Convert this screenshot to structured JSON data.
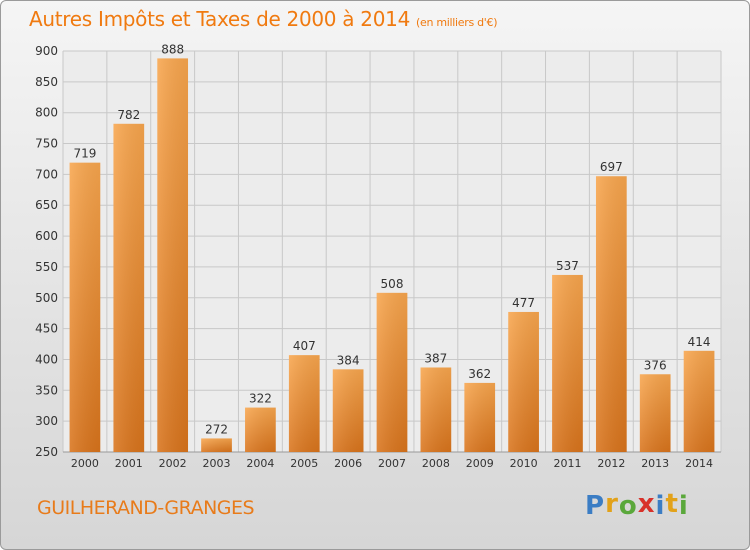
{
  "title": "Autres Impôts et Taxes de 2000 à 2014",
  "unit": "(en milliers d'€)",
  "location": "GUILHERAND-GRANGES",
  "logo": {
    "text": "Proxiti",
    "letters": [
      "P",
      "r",
      "o",
      "x",
      "i",
      "t",
      "i"
    ],
    "colors": [
      "#3b7dc4",
      "#e2a21a",
      "#5aa83b",
      "#d8312a",
      "#3b7dc4",
      "#e2a21a",
      "#5aa83b"
    ]
  },
  "colors": {
    "accent": "#f07a10",
    "bar_light": "#f8a64e",
    "bar_dark": "#d9741c",
    "grid": "#c8c8c8",
    "text": "#333333"
  },
  "chart_data": {
    "type": "bar",
    "categories": [
      "2000",
      "2001",
      "2002",
      "2003",
      "2004",
      "2005",
      "2006",
      "2007",
      "2008",
      "2009",
      "2010",
      "2011",
      "2012",
      "2013",
      "2014"
    ],
    "values": [
      719,
      782,
      888,
      272,
      322,
      407,
      384,
      508,
      387,
      362,
      477,
      537,
      697,
      376,
      414
    ],
    "ylim": [
      250,
      900
    ],
    "yticks": [
      250,
      300,
      350,
      400,
      450,
      500,
      550,
      600,
      650,
      700,
      750,
      800,
      850,
      900
    ],
    "grid": true,
    "data_labels": true
  }
}
